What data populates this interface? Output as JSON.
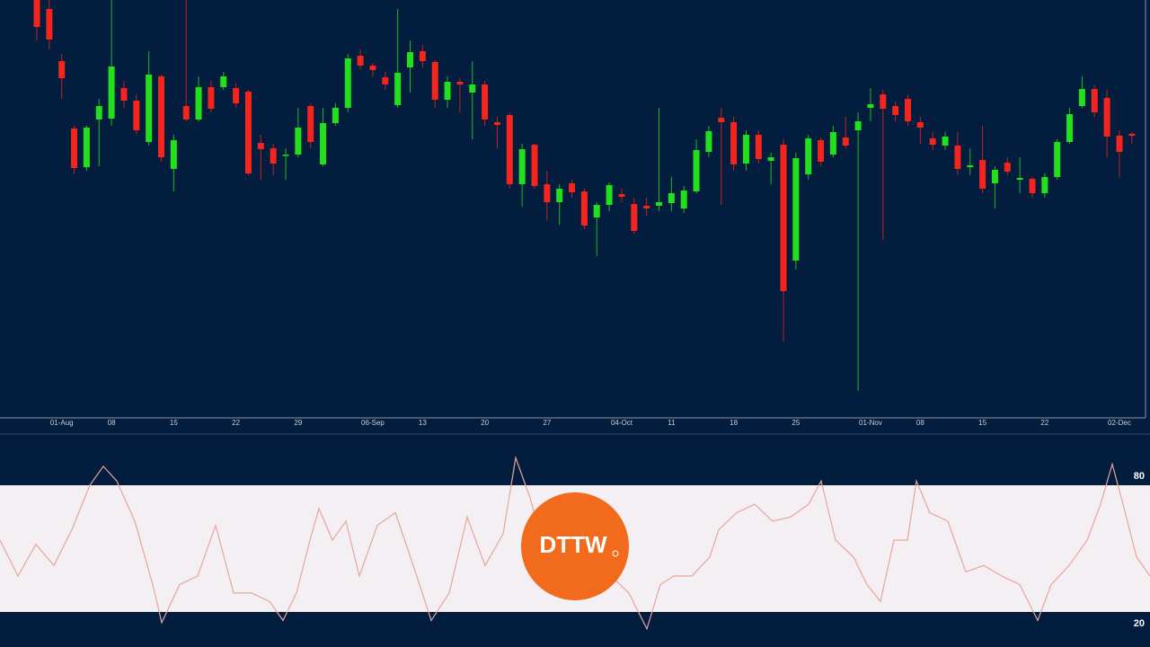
{
  "chart_data": [
    {
      "type": "candlestick",
      "categories": [
        null,
        null,
        "01-Aug",
        null,
        null,
        null,
        "08",
        null,
        null,
        null,
        null,
        "15",
        null,
        null,
        null,
        null,
        "22",
        null,
        null,
        null,
        null,
        "29",
        null,
        null,
        null,
        null,
        null,
        "06-Sep",
        null,
        null,
        null,
        "13",
        null,
        null,
        null,
        null,
        "20",
        null,
        null,
        null,
        null,
        "27",
        null,
        null,
        null,
        null,
        null,
        "04-Oct",
        null,
        null,
        null,
        "11",
        null,
        null,
        null,
        null,
        "18",
        null,
        null,
        null,
        null,
        "25",
        null,
        null,
        null,
        null,
        null,
        "01-Nov",
        null,
        null,
        null,
        "08",
        null,
        null,
        null,
        null,
        "15",
        null,
        null,
        null,
        null,
        "22",
        null,
        null,
        null,
        null,
        null,
        "02-Dec",
        null
      ],
      "open": [
        465,
        455,
        397,
        322,
        279,
        332,
        333,
        367,
        353,
        307,
        380,
        277,
        347,
        332,
        368,
        368,
        367,
        363,
        306,
        300,
        292,
        293,
        347,
        282,
        328,
        345,
        403,
        392,
        379,
        348,
        390,
        408,
        396,
        354,
        374,
        362,
        371,
        329,
        337,
        260,
        304,
        260,
        240,
        261,
        252,
        223,
        237,
        249,
        238,
        236,
        236,
        239,
        233,
        252,
        296,
        334,
        329,
        283,
        315,
        286,
        304,
        175,
        271,
        309,
        293,
        312,
        320,
        345,
        360,
        347,
        355,
        329,
        311,
        303,
        303,
        279,
        287,
        261,
        284,
        265,
        266,
        250,
        268,
        307,
        347,
        366,
        356,
        314,
        316
      ],
      "high": [
        465,
        465,
        405,
        325,
        325,
        355,
        465,
        375,
        360,
        408,
        382,
        315,
        465,
        380,
        375,
        385,
        372,
        365,
        315,
        305,
        300,
        345,
        350,
        345,
        350,
        405,
        410,
        395,
        385,
        455,
        420,
        415,
        398,
        380,
        378,
        397,
        375,
        335,
        340,
        305,
        305,
        275,
        260,
        265,
        255,
        240,
        262,
        255,
        245,
        245,
        345,
        268,
        258,
        310,
        325,
        345,
        335,
        320,
        320,
        295,
        310,
        295,
        315,
        312,
        325,
        335,
        340,
        367,
        365,
        352,
        360,
        335,
        318,
        318,
        318,
        300,
        325,
        280,
        290,
        290,
        268,
        272,
        310,
        345,
        380,
        370,
        365,
        320,
        318
      ],
      "low": [
        420,
        410,
        355,
        272,
        275,
        280,
        325,
        345,
        315,
        303,
        285,
        252,
        330,
        330,
        340,
        365,
        345,
        270,
        265,
        270,
        265,
        290,
        300,
        280,
        325,
        340,
        388,
        380,
        365,
        345,
        362,
        390,
        345,
        345,
        340,
        310,
        325,
        300,
        255,
        235,
        255,
        220,
        215,
        245,
        210,
        180,
        230,
        240,
        205,
        225,
        230,
        230,
        228,
        250,
        290,
        237,
        275,
        275,
        283,
        260,
        85,
        165,
        265,
        280,
        290,
        300,
        30,
        330,
        198,
        330,
        325,
        305,
        298,
        298,
        270,
        270,
        250,
        233,
        270,
        250,
        245,
        245,
        265,
        305,
        345,
        335,
        290,
        268,
        305
      ],
      "close": [
        435,
        421,
        378,
        278,
        323,
        347,
        391,
        353,
        320,
        382,
        290,
        309,
        332,
        368,
        344,
        380,
        350,
        272,
        299,
        283,
        293,
        323,
        307,
        328,
        345,
        400,
        392,
        387,
        371,
        384,
        407,
        397,
        354,
        374,
        371,
        371,
        332,
        326,
        260,
        299,
        258,
        240,
        255,
        251,
        214,
        237,
        259,
        246,
        208,
        233,
        240,
        250,
        253,
        298,
        319,
        329,
        282,
        315,
        288,
        290,
        141,
        289,
        311,
        285,
        318,
        303,
        330,
        349,
        344,
        337,
        330,
        323,
        304,
        313,
        277,
        281,
        255,
        276,
        274,
        267,
        250,
        268,
        307,
        338,
        366,
        340,
        313,
        296,
        314
      ],
      "ylim": [
        0,
        465
      ],
      "up_color": "#22e01c",
      "down_color": "#f5241c"
    },
    {
      "type": "line",
      "x": [
        0,
        20,
        40,
        60,
        80,
        100,
        115,
        130,
        150,
        170,
        180,
        200,
        220,
        240,
        260,
        280,
        300,
        315,
        330,
        345,
        355,
        370,
        385,
        400,
        420,
        440,
        460,
        480,
        500,
        520,
        540,
        560,
        574,
        590,
        600,
        640,
        680,
        700,
        720,
        735,
        750,
        770,
        790,
        800,
        820,
        840,
        860,
        880,
        900,
        914,
        930,
        950,
        965,
        980,
        995,
        1010,
        1020,
        1035,
        1055,
        1075,
        1095,
        1115,
        1135,
        1155,
        1170,
        1190,
        1210,
        1225,
        1238,
        1250,
        1265,
        1280
      ],
      "series": [
        {
          "color": "#e8a59a",
          "values": [
            54,
            37,
            52,
            42,
            59,
            80,
            89,
            82,
            63,
            33,
            15,
            33,
            37,
            61,
            29,
            29,
            25,
            16,
            29,
            54,
            69,
            54,
            63,
            37,
            61,
            67,
            42,
            16,
            29,
            65,
            42,
            57,
            93,
            74,
            59,
            46,
            37,
            29,
            12,
            33,
            37,
            37,
            46,
            59,
            67,
            71,
            63,
            65,
            71,
            82,
            54,
            46,
            33,
            25,
            54,
            54,
            82,
            67,
            63,
            39,
            42,
            37,
            33,
            16,
            33,
            42,
            54,
            71,
            90,
            71,
            46,
            37
          ]
        }
      ],
      "xlim": [
        0,
        1280
      ],
      "ylim": [
        0,
        100
      ],
      "yticks": [
        80,
        20
      ],
      "band_color": "#f3eff2"
    }
  ],
  "logo": "DTTW"
}
